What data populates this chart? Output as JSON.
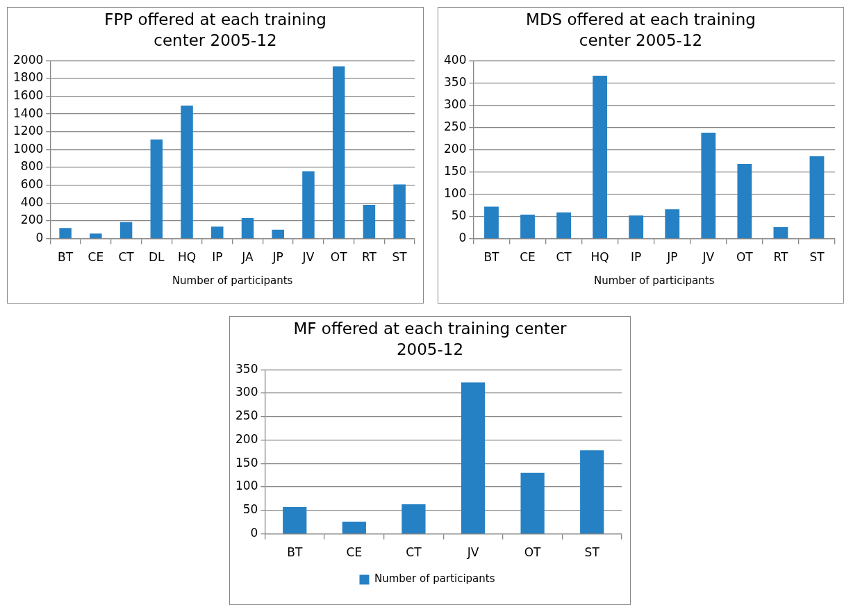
{
  "chart_data": [
    {
      "type": "bar",
      "title": "FPP offered at each training center 2005-12",
      "xlabel": "Number of participants",
      "categories": [
        "BT",
        "CE",
        "CT",
        "DL",
        "HQ",
        "IP",
        "JA",
        "JP",
        "JV",
        "OT",
        "RT",
        "ST"
      ],
      "values": [
        120,
        58,
        187,
        1115,
        1495,
        135,
        230,
        100,
        757,
        1935,
        380,
        610
      ],
      "color": "#2681c4",
      "ylim": [
        0,
        2000
      ],
      "yticks": [
        0,
        200,
        400,
        600,
        800,
        1000,
        1200,
        1400,
        1600,
        1800,
        2000
      ],
      "grid": "y"
    },
    {
      "type": "bar",
      "title": "MDS offered at each training center 2005-12",
      "xlabel": "Number of participants",
      "categories": [
        "BT",
        "CE",
        "CT",
        "HQ",
        "IP",
        "JP",
        "JV",
        "OT",
        "RT",
        "ST"
      ],
      "values": [
        72,
        54,
        59,
        366,
        52,
        66,
        238,
        168,
        26,
        185
      ],
      "color": "#2681c4",
      "ylim": [
        0,
        400
      ],
      "yticks": [
        0,
        50,
        100,
        150,
        200,
        250,
        300,
        350,
        400
      ],
      "grid": "y"
    },
    {
      "type": "bar",
      "title": "MF offered at each training center 2005-12",
      "categories": [
        "BT",
        "CE",
        "CT",
        "JV",
        "OT",
        "ST"
      ],
      "series": [
        {
          "name": "Number of participants",
          "color": "#2681c4",
          "values": [
            57,
            26,
            63,
            323,
            130,
            178
          ]
        }
      ],
      "ylim": [
        0,
        350
      ],
      "yticks": [
        0,
        50,
        100,
        150,
        200,
        250,
        300,
        350
      ],
      "grid": "y",
      "legend": "bottom"
    }
  ]
}
